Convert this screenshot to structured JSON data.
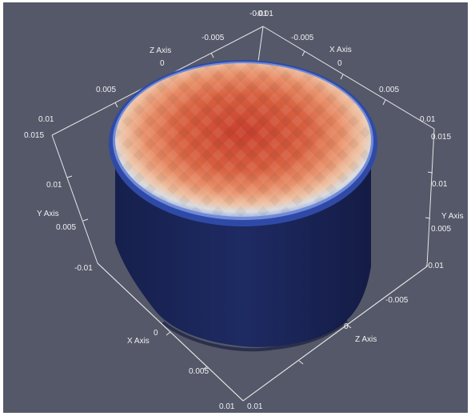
{
  "viewport": {
    "background": "#545869",
    "axis_color": "#e6e6e6",
    "cylinder_side_color": "#1b2659",
    "cylinder_rim_color": "#3d5bb8",
    "cap_center_color": "#c8402e",
    "cap_edge_color": "#dcdcdc"
  },
  "labels": {
    "z_axis_top": "Z Axis",
    "x_axis_top": "X Axis",
    "y_axis_left": "Y Axis",
    "y_axis_right": "Y Axis",
    "x_axis_bottom": "X Axis",
    "z_axis_bottom": "Z Axis",
    "top_corner_a": "-0.01",
    "top_corner_b": "-0.01",
    "z_top_1": "-0.005",
    "z_top_2": "0",
    "z_top_3": "0.005",
    "z_top_4": "0.01",
    "x_top_1": "-0.005",
    "x_top_2": "0",
    "x_top_3": "0.005",
    "x_top_4": "0.01",
    "y_left_1": "0.015",
    "y_left_2": "0.01",
    "y_left_3": "0.005",
    "left_corner": "-0.01",
    "y_right_1": "0.015",
    "y_right_2": "0.01",
    "y_right_3": "0.005",
    "right_corner": "-0.01",
    "x_bot_1": "0",
    "x_bot_2": "0.005",
    "bottom_a": "0.01",
    "bottom_b": "0.01",
    "z_bot_1": "0",
    "z_bot_2": "-0.005"
  }
}
